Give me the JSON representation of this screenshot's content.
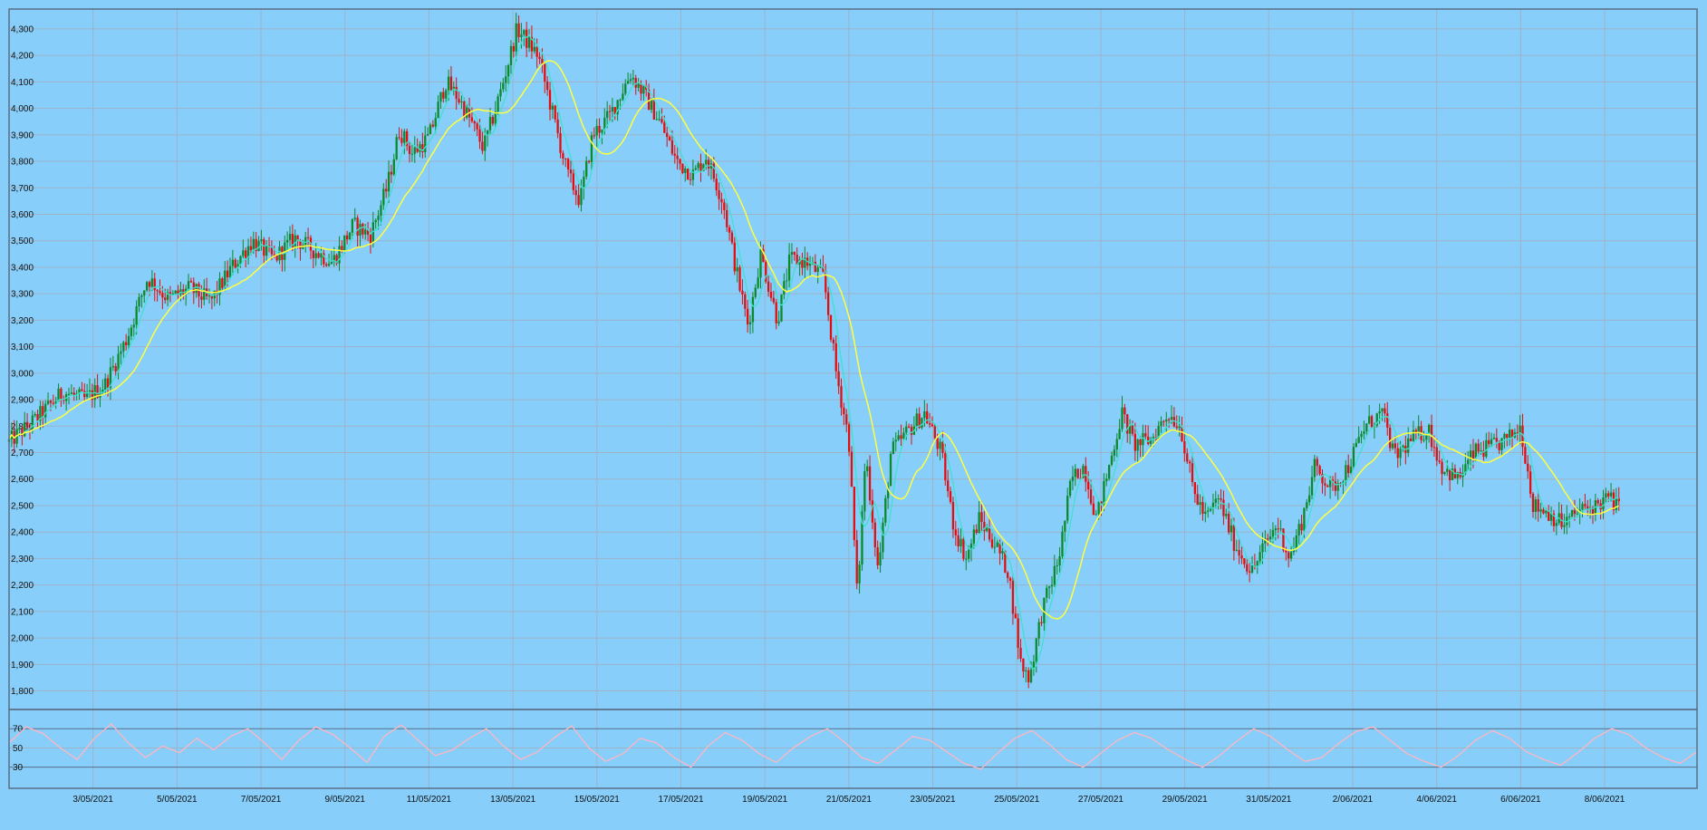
{
  "colors": {
    "background": "#87cefa",
    "frame": "#5a6e86",
    "grid": "#9db3c8",
    "candle_up": "#0a8a2a",
    "candle_down": "#e01010",
    "ma_fast": "#40e0d0",
    "ma_slow": "#ffff40",
    "oscillator": "#ffb6c1"
  },
  "chart_data": [
    {
      "type": "candlestick",
      "title": "",
      "xlabel": "",
      "ylabel": "",
      "x_tick_labels": [
        "3/05/2021",
        "5/05/2021",
        "7/05/2021",
        "9/05/2021",
        "11/05/2021",
        "13/05/2021",
        "15/05/2021",
        "17/05/2021",
        "19/05/2021",
        "21/05/2021",
        "23/05/2021",
        "25/05/2021",
        "27/05/2021",
        "29/05/2021",
        "31/05/2021",
        "2/06/2021",
        "4/06/2021",
        "6/06/2021",
        "8/06/2021"
      ],
      "y_tick_labels": [
        "1,800",
        "1,900",
        "2,000",
        "2,100",
        "2,200",
        "2,300",
        "2,400",
        "2,500",
        "2,600",
        "2,700",
        "2,800",
        "2,900",
        "3,000",
        "3,100",
        "3,200",
        "3,300",
        "3,400",
        "3,500",
        "3,600",
        "3,700",
        "3,800",
        "3,900",
        "4,000",
        "4,100",
        "4,200",
        "4,300"
      ],
      "ylim": [
        1730,
        4375
      ],
      "xlim_days": [
        0,
        40.2
      ],
      "day_offset_of_first_tick": 2,
      "grid": true,
      "series": [
        {
          "kind": "close_path",
          "points": [
            [
              0,
              2740
            ],
            [
              0.6,
              2820
            ],
            [
              1.3,
              2930
            ],
            [
              1.8,
              2900
            ],
            [
              2.3,
              2960
            ],
            [
              2.8,
              3130
            ],
            [
              3.3,
              3360
            ],
            [
              3.8,
              3280
            ],
            [
              4.3,
              3320
            ],
            [
              4.8,
              3270
            ],
            [
              5.3,
              3400
            ],
            [
              5.8,
              3500
            ],
            [
              6.3,
              3430
            ],
            [
              6.8,
              3510
            ],
            [
              7.3,
              3460
            ],
            [
              7.7,
              3420
            ],
            [
              8.2,
              3560
            ],
            [
              8.6,
              3520
            ],
            [
              9.0,
              3700
            ],
            [
              9.3,
              3920
            ],
            [
              9.6,
              3830
            ],
            [
              10.0,
              3890
            ],
            [
              10.4,
              4100
            ],
            [
              10.7,
              4040
            ],
            [
              11.0,
              3950
            ],
            [
              11.3,
              3850
            ],
            [
              11.7,
              4060
            ],
            [
              12.1,
              4300
            ],
            [
              12.6,
              4200
            ],
            [
              12.9,
              4010
            ],
            [
              13.3,
              3750
            ],
            [
              13.6,
              3650
            ],
            [
              13.9,
              3900
            ],
            [
              14.3,
              3970
            ],
            [
              14.8,
              4130
            ],
            [
              15.1,
              4060
            ],
            [
              15.5,
              3950
            ],
            [
              15.9,
              3800
            ],
            [
              16.3,
              3750
            ],
            [
              16.6,
              3820
            ],
            [
              17.0,
              3650
            ],
            [
              17.3,
              3400
            ],
            [
              17.6,
              3180
            ],
            [
              17.9,
              3450
            ],
            [
              18.3,
              3200
            ],
            [
              18.6,
              3430
            ],
            [
              19.0,
              3420
            ],
            [
              19.4,
              3360
            ],
            [
              19.7,
              3000
            ],
            [
              20.0,
              2750
            ],
            [
              20.2,
              2150
            ],
            [
              20.4,
              2700
            ],
            [
              20.7,
              2250
            ],
            [
              21.0,
              2700
            ],
            [
              21.4,
              2780
            ],
            [
              21.8,
              2850
            ],
            [
              22.2,
              2700
            ],
            [
              22.5,
              2420
            ],
            [
              22.8,
              2300
            ],
            [
              23.1,
              2450
            ],
            [
              23.5,
              2350
            ],
            [
              23.8,
              2250
            ],
            [
              24.1,
              1900
            ],
            [
              24.3,
              1850
            ],
            [
              24.6,
              2100
            ],
            [
              25.0,
              2300
            ],
            [
              25.3,
              2600
            ],
            [
              25.6,
              2650
            ],
            [
              25.9,
              2450
            ],
            [
              26.2,
              2650
            ],
            [
              26.5,
              2850
            ],
            [
              26.8,
              2730
            ],
            [
              27.2,
              2750
            ],
            [
              27.6,
              2850
            ],
            [
              27.9,
              2800
            ],
            [
              28.2,
              2560
            ],
            [
              28.5,
              2450
            ],
            [
              28.8,
              2530
            ],
            [
              29.2,
              2350
            ],
            [
              29.6,
              2250
            ],
            [
              29.9,
              2350
            ],
            [
              30.2,
              2430
            ],
            [
              30.5,
              2300
            ],
            [
              30.8,
              2450
            ],
            [
              31.1,
              2650
            ],
            [
              31.5,
              2560
            ],
            [
              31.9,
              2650
            ],
            [
              32.3,
              2800
            ],
            [
              32.7,
              2850
            ],
            [
              33.0,
              2680
            ],
            [
              33.4,
              2750
            ],
            [
              33.8,
              2790
            ],
            [
              34.1,
              2650
            ],
            [
              34.5,
              2600
            ],
            [
              34.9,
              2700
            ],
            [
              35.3,
              2720
            ],
            [
              35.7,
              2750
            ],
            [
              36.0,
              2800
            ],
            [
              36.3,
              2500
            ],
            [
              36.6,
              2480
            ],
            [
              37.0,
              2430
            ],
            [
              37.4,
              2480
            ],
            [
              37.8,
              2500
            ],
            [
              38.1,
              2530
            ],
            [
              38.4,
              2480
            ]
          ]
        },
        {
          "kind": "ma_fast",
          "name": "",
          "smoothing": 2
        },
        {
          "kind": "ma_slow",
          "name": "",
          "smoothing": 7
        }
      ]
    },
    {
      "type": "line",
      "title": "",
      "y_tick_labels": [
        "30",
        "50",
        "70"
      ],
      "ylim": [
        8,
        90
      ],
      "reference_lines": [
        30,
        70
      ],
      "series": [
        {
          "name": "",
          "values": [
            55,
            72,
            65,
            50,
            38,
            60,
            75,
            55,
            40,
            52,
            45,
            60,
            48,
            62,
            70,
            55,
            38,
            58,
            72,
            64,
            50,
            35,
            62,
            74,
            58,
            42,
            48,
            60,
            70,
            52,
            38,
            46,
            61,
            73,
            50,
            36,
            44,
            60,
            55,
            40,
            30,
            52,
            66,
            58,
            44,
            35,
            50,
            62,
            70,
            56,
            40,
            34,
            48,
            62,
            58,
            46,
            34,
            28,
            45,
            60,
            68,
            54,
            38,
            30,
            44,
            58,
            66,
            60,
            48,
            38,
            30,
            42,
            57,
            70,
            62,
            48,
            36,
            40,
            55,
            67,
            72,
            58,
            44,
            36,
            30,
            42,
            58,
            68,
            60,
            46,
            38,
            32,
            45,
            60,
            70,
            64,
            50,
            40,
            34,
            46
          ]
        }
      ]
    }
  ]
}
